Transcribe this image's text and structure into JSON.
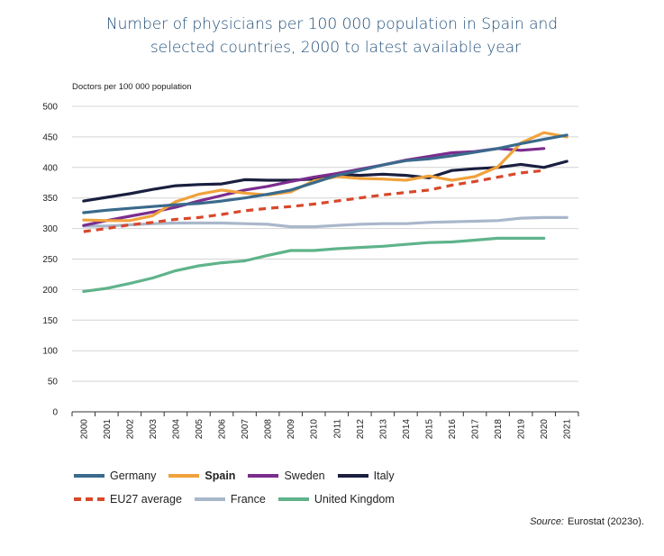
{
  "title_line1": "Number of physicians per 100 000 population in Spain and",
  "title_line2": "selected countries, 2000 to latest available year",
  "source_label": "Source:",
  "source_text": "Eurostat (2023o).",
  "chart_data": {
    "type": "line",
    "ylabel": "Doctors per 100 000 population",
    "xlabel": "",
    "ylim": [
      0,
      500
    ],
    "yticks": [
      0,
      50,
      100,
      150,
      200,
      250,
      300,
      350,
      400,
      450,
      500
    ],
    "grid": "horizontal",
    "legend_position": "bottom",
    "x": [
      "2000",
      "2001",
      "2002",
      "2003",
      "2004",
      "2005",
      "2006",
      "2007",
      "2008",
      "2009",
      "2010",
      "2011",
      "2012",
      "2013",
      "2014",
      "2015",
      "2016",
      "2017",
      "2018",
      "2019",
      "2020",
      "2021"
    ],
    "series": [
      {
        "name": "Germany",
        "color": "#3a6a8c",
        "style": "solid",
        "bold": false,
        "values": [
          326,
          330,
          333,
          336,
          339,
          341,
          345,
          350,
          356,
          363,
          375,
          387,
          395,
          404,
          411,
          414,
          419,
          425,
          431,
          439,
          446,
          453
        ]
      },
      {
        "name": "Spain",
        "color": "#f0a23c",
        "style": "solid",
        "bold": true,
        "values": [
          314,
          313,
          313,
          321,
          344,
          356,
          363,
          358,
          355,
          360,
          378,
          385,
          382,
          381,
          379,
          386,
          379,
          385,
          401,
          440,
          457,
          450
        ]
      },
      {
        "name": "Sweden",
        "color": "#7b2d8e",
        "style": "solid",
        "bold": false,
        "values": [
          305,
          313,
          320,
          327,
          335,
          345,
          354,
          363,
          369,
          377,
          384,
          390,
          397,
          404,
          412,
          418,
          424,
          426,
          431,
          428,
          431,
          null
        ]
      },
      {
        "name": "Italy",
        "color": "#1a1f3f",
        "style": "solid",
        "bold": false,
        "values": [
          345,
          351,
          357,
          364,
          370,
          372,
          373,
          380,
          379,
          379,
          381,
          389,
          387,
          389,
          387,
          383,
          395,
          398,
          400,
          405,
          400,
          410
        ]
      },
      {
        "name": "EU27 average",
        "color": "#d9482b",
        "style": "dashed",
        "bold": false,
        "values": [
          295,
          300,
          306,
          310,
          315,
          318,
          323,
          329,
          333,
          336,
          340,
          345,
          350,
          355,
          359,
          363,
          371,
          377,
          384,
          391,
          395,
          null
        ]
      },
      {
        "name": "France",
        "color": "#a9b7cb",
        "style": "solid",
        "bold": false,
        "values": [
          304,
          304,
          306,
          308,
          309,
          309,
          309,
          308,
          307,
          303,
          303,
          305,
          307,
          308,
          308,
          310,
          311,
          312,
          313,
          317,
          318,
          318
        ]
      },
      {
        "name": "United Kingdom",
        "color": "#5fb38b",
        "style": "solid",
        "bold": false,
        "values": [
          197,
          202,
          210,
          219,
          231,
          239,
          244,
          247,
          256,
          264,
          264,
          267,
          269,
          271,
          274,
          277,
          278,
          281,
          284,
          284,
          284,
          null
        ]
      }
    ]
  }
}
